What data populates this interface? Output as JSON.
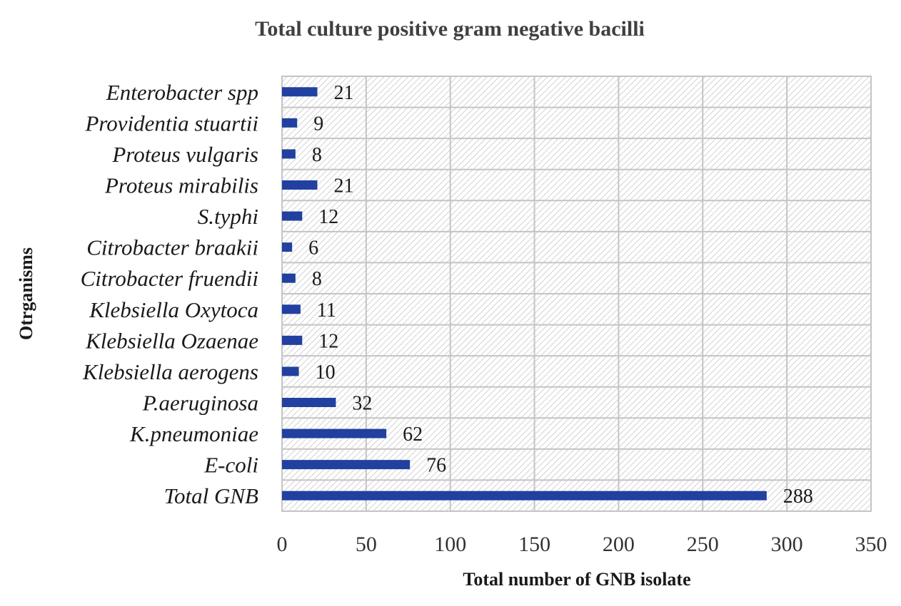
{
  "chart_data": {
    "type": "bar",
    "orientation": "horizontal",
    "title": "Total culture positive gram negative bacilli",
    "xlabel": "Total number of GNB isolate",
    "ylabel": "Otrganisms",
    "categories": [
      "Enterobacter spp",
      "Providentia stuartii",
      "Proteus vulgaris",
      "Proteus mirabilis",
      "S.typhi",
      "Citrobacter braakii",
      "Citrobacter fruendii",
      "Klebsiella Oxytoca",
      "Klebsiella Ozaenae",
      "Klebsiella aerogens",
      "P.aeruginosa",
      "K.pneumoniae",
      "E-coli",
      "Total GNB"
    ],
    "values": [
      21,
      9,
      8,
      21,
      12,
      6,
      8,
      11,
      12,
      10,
      32,
      62,
      76,
      288
    ],
    "xlim": [
      0,
      350
    ],
    "xticks": [
      "0",
      "50",
      "100",
      "150",
      "200",
      "250",
      "300",
      "350"
    ],
    "grid": true,
    "legend": "none",
    "colors": {
      "bar": "#2140a0",
      "grid": "#c4c4c4",
      "hatch": "#d2d2d2"
    }
  }
}
